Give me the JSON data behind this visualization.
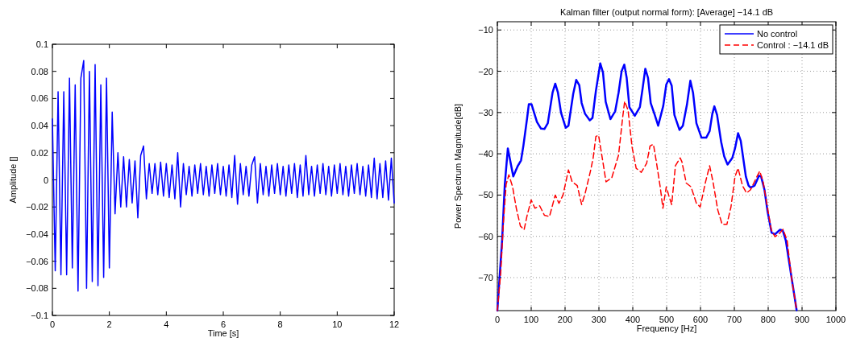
{
  "chart_data": [
    {
      "type": "line",
      "xlabel": "Time [s]",
      "ylabel": "Amplitude []",
      "xlim": [
        0,
        12
      ],
      "ylim": [
        -0.1,
        0.1
      ],
      "xticks": [
        0,
        2,
        4,
        6,
        8,
        10,
        12
      ],
      "yticks": [
        {
          "value": -0.1,
          "label": "−0.1"
        },
        {
          "value": -0.08,
          "label": "−0.08"
        },
        {
          "value": -0.06,
          "label": "−0.06"
        },
        {
          "value": -0.04,
          "label": "−0.04"
        },
        {
          "value": -0.02,
          "label": "−0.02"
        },
        0,
        0.02,
        0.04,
        0.06,
        0.08,
        0.1
      ],
      "grid": false,
      "legend": false,
      "series": [
        {
          "color": "#0000ff",
          "x": [
            0,
            0.1,
            0.2,
            0.3,
            0.4,
            0.5,
            0.6,
            0.7,
            0.8,
            0.9,
            1,
            1.1,
            1.2,
            1.3,
            1.4,
            1.5,
            1.6,
            1.7,
            1.8,
            1.9,
            2,
            2.1,
            2.2,
            2.3,
            2.4,
            2.5,
            2.6,
            2.7,
            2.8,
            2.9,
            3,
            3.1,
            3.2,
            3.3,
            3.4,
            3.5,
            3.6,
            3.7,
            3.8,
            3.9,
            4,
            4.1,
            4.2,
            4.3,
            4.4,
            4.5,
            4.6,
            4.7,
            4.8,
            4.9,
            5,
            5.1,
            5.2,
            5.3,
            5.4,
            5.5,
            5.6,
            5.7,
            5.8,
            5.9,
            6,
            6.1,
            6.2,
            6.3,
            6.4,
            6.5,
            6.6,
            6.7,
            6.8,
            6.9,
            7,
            7.1,
            7.2,
            7.3,
            7.4,
            7.5,
            7.6,
            7.7,
            7.8,
            7.9,
            8,
            8.1,
            8.2,
            8.3,
            8.4,
            8.5,
            8.6,
            8.7,
            8.8,
            8.9,
            9,
            9.1,
            9.2,
            9.3,
            9.4,
            9.5,
            9.6,
            9.7,
            9.8,
            9.9,
            10,
            10.1,
            10.2,
            10.3,
            10.4,
            10.5,
            10.6,
            10.7,
            10.8,
            10.9,
            11,
            11.1,
            11.2,
            11.3,
            11.4,
            11.5,
            11.6,
            11.7,
            11.8,
            11.9,
            12
          ],
          "values": [
            0.045,
            -0.067,
            0.065,
            -0.07,
            0.065,
            -0.07,
            0.075,
            -0.065,
            0.07,
            -0.082,
            0.075,
            0.088,
            -0.08,
            0.08,
            -0.075,
            0.085,
            -0.078,
            0.07,
            -0.072,
            0.075,
            -0.065,
            0.05,
            -0.025,
            0.02,
            -0.02,
            0.017,
            -0.02,
            0.015,
            -0.017,
            0.014,
            -0.028,
            0.018,
            0.025,
            -0.014,
            0.012,
            -0.01,
            0.012,
            -0.011,
            0.013,
            -0.012,
            0.012,
            -0.013,
            0.011,
            -0.014,
            0.02,
            -0.02,
            0.012,
            -0.011,
            0.01,
            -0.012,
            0.011,
            -0.01,
            0.012,
            -0.011,
            0.01,
            -0.012,
            0.011,
            -0.01,
            0.012,
            -0.011,
            0.01,
            -0.012,
            0.011,
            -0.013,
            0.018,
            -0.018,
            0.012,
            -0.011,
            0.01,
            -0.012,
            0.011,
            0.017,
            -0.017,
            0.012,
            -0.011,
            0.01,
            -0.012,
            0.011,
            -0.01,
            0.012,
            -0.011,
            0.01,
            -0.012,
            0.011,
            -0.01,
            0.012,
            -0.013,
            0.011,
            -0.012,
            0.018,
            -0.011,
            0.01,
            -0.012,
            0.011,
            -0.01,
            0.012,
            -0.011,
            0.01,
            -0.012,
            0.011,
            -0.01,
            0.012,
            -0.011,
            0.01,
            -0.012,
            0.011,
            -0.01,
            0.012,
            -0.011,
            0.01,
            -0.012,
            0.011,
            -0.013,
            0.016,
            -0.014,
            0.012,
            -0.013,
            0.014,
            -0.015,
            0.016,
            -0.017
          ]
        }
      ]
    },
    {
      "type": "line",
      "title": "Kalman filter (output normal form): [Average] −14.1 dB",
      "xlabel": "Frequency [Hz]",
      "ylabel": "Power Spectrum Magnitude[dB]",
      "xlim": [
        0,
        1000
      ],
      "ylim": [
        -78,
        -8
      ],
      "xticks": [
        0,
        100,
        200,
        300,
        400,
        500,
        600,
        700,
        800,
        900,
        1000
      ],
      "yticks": [
        {
          "value": -70,
          "label": "−70"
        },
        {
          "value": -60,
          "label": "−60"
        },
        {
          "value": -50,
          "label": "−50"
        },
        {
          "value": -40,
          "label": "−40"
        },
        {
          "value": -30,
          "label": "−30"
        },
        {
          "value": -20,
          "label": "−20"
        },
        {
          "value": -10,
          "label": "−10"
        }
      ],
      "grid": true,
      "legend": "top right",
      "series": [
        {
          "name": "No control",
          "color": "#0000ff",
          "line_style": "solid",
          "x": [
            0,
            14,
            22,
            31,
            47,
            60,
            70,
            77,
            88,
            93,
            101,
            117,
            129,
            139,
            149,
            163,
            171,
            179,
            188,
            202,
            210,
            224,
            233,
            242,
            249,
            259,
            273,
            281,
            291,
            304,
            312,
            320,
            334,
            348,
            358,
            367,
            375,
            382,
            390,
            406,
            421,
            429,
            437,
            445,
            453,
            465,
            475,
            490,
            499,
            507,
            515,
            523,
            538,
            548,
            560,
            570,
            578,
            588,
            603,
            617,
            627,
            635,
            641,
            649,
            661,
            670,
            680,
            694,
            702,
            711,
            719,
            734,
            742,
            748,
            760,
            773,
            779,
            789,
            798,
            810,
            820,
            835,
            843,
            852,
            868,
            884
          ],
          "values": [
            -78,
            -61,
            -47.4,
            -38.7,
            -45.5,
            -43,
            -41.6,
            -38,
            -31.3,
            -28,
            -28,
            -32.3,
            -33.9,
            -34,
            -32.6,
            -25.2,
            -23,
            -25.2,
            -30,
            -33.7,
            -33.2,
            -25.5,
            -22.1,
            -23.4,
            -27.7,
            -30.3,
            -31.9,
            -31.3,
            -24.8,
            -18.1,
            -20.3,
            -27.4,
            -31.6,
            -29.7,
            -25.2,
            -20,
            -18.4,
            -21.6,
            -28.7,
            -30.8,
            -28.7,
            -24.2,
            -19.4,
            -21.6,
            -27.7,
            -30.6,
            -33.2,
            -28.4,
            -23.2,
            -21.9,
            -23.5,
            -30.6,
            -34.2,
            -33.2,
            -28.1,
            -22.3,
            -25.2,
            -32.6,
            -36.1,
            -36.1,
            -34.5,
            -30.3,
            -28.5,
            -30.6,
            -37.1,
            -40.6,
            -42.6,
            -41,
            -38.7,
            -35,
            -36.9,
            -45.5,
            -47.7,
            -48.2,
            -47.7,
            -45.3,
            -45.5,
            -48.7,
            -53.9,
            -59.1,
            -59.5,
            -58.4,
            -58.6,
            -61,
            -69.5,
            -77.9
          ]
        },
        {
          "name": "Control : −14.1 dB",
          "color": "#ff0000",
          "line_style": "dashed",
          "x": [
            0,
            10,
            18,
            26,
            34,
            45,
            56,
            68,
            79,
            88,
            100,
            111,
            125,
            139,
            154,
            171,
            182,
            194,
            210,
            221,
            236,
            249,
            259,
            275,
            283,
            291,
            299,
            311,
            321,
            338,
            358,
            370,
            376,
            386,
            398,
            410,
            425,
            441,
            451,
            461,
            469,
            481,
            489,
            499,
            506,
            515,
            526,
            540,
            545,
            558,
            572,
            588,
            599,
            615,
            627,
            637,
            651,
            664,
            678,
            690,
            702,
            711,
            724,
            736,
            748,
            765,
            775,
            785,
            797,
            809,
            820,
            832,
            844,
            856,
            869,
            884
          ],
          "values": [
            -78,
            -68.8,
            -56.5,
            -47.4,
            -45.1,
            -48,
            -53.2,
            -57.5,
            -58.4,
            -54.9,
            -51.2,
            -53.2,
            -52.6,
            -54.9,
            -55.2,
            -50,
            -52,
            -50,
            -43.9,
            -46.8,
            -47.7,
            -52.3,
            -49.7,
            -44.2,
            -41,
            -35.8,
            -35.5,
            -41.6,
            -46.8,
            -45.8,
            -40.3,
            -31.3,
            -27.3,
            -29.4,
            -38.4,
            -43.5,
            -44.5,
            -42.3,
            -38.1,
            -37.7,
            -41.6,
            -48,
            -53.2,
            -48,
            -50,
            -52.3,
            -42.9,
            -41,
            -41.9,
            -47.1,
            -48,
            -52,
            -52.9,
            -46.8,
            -42.9,
            -46.8,
            -53.6,
            -57.1,
            -57.1,
            -52.9,
            -45.5,
            -43.5,
            -47.7,
            -49.5,
            -48.7,
            -45.8,
            -44.2,
            -46.8,
            -52.6,
            -58.4,
            -60.1,
            -59.4,
            -58.3,
            -61,
            -70.1,
            -77.9
          ]
        }
      ]
    }
  ]
}
